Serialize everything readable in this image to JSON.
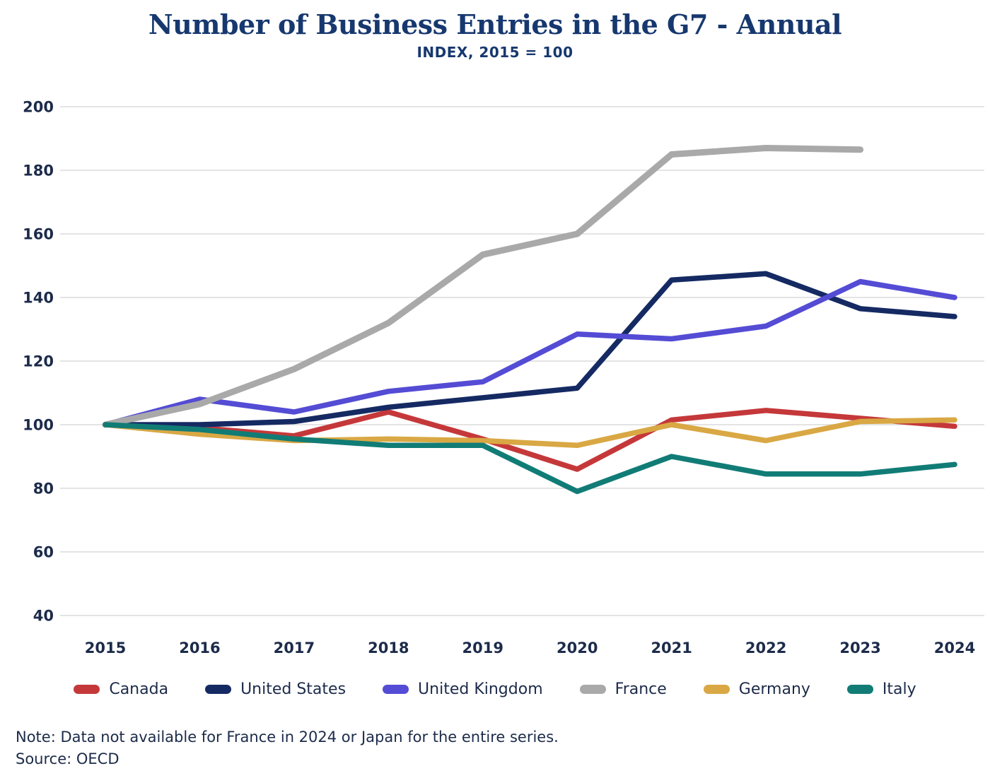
{
  "chart": {
    "title": "Number of Business Entries in the G7 - Annual",
    "subtitle": "INDEX, 2015 = 100"
  },
  "chart_data": {
    "type": "line",
    "x": [
      2015,
      2016,
      2017,
      2018,
      2019,
      2020,
      2021,
      2022,
      2023,
      2024
    ],
    "series": [
      {
        "name": "Canada",
        "color": "#C5383A",
        "values": [
          100,
          99,
          96.5,
          104,
          95.5,
          86,
          101.5,
          104.5,
          102,
          99.5
        ]
      },
      {
        "name": "United States",
        "color": "#152A63",
        "values": [
          100,
          100,
          101,
          105.5,
          108.5,
          111.5,
          145.5,
          147.5,
          136.5,
          134
        ]
      },
      {
        "name": "United Kingdom",
        "color": "#544CD4",
        "values": [
          100,
          108,
          104,
          110.5,
          113.5,
          128.5,
          127,
          131,
          145,
          140
        ]
      },
      {
        "name": "France",
        "color": "#A9A9A9",
        "values": [
          100,
          106.5,
          117.5,
          132,
          153.5,
          160,
          185,
          187,
          186.5,
          null
        ]
      },
      {
        "name": "Germany",
        "color": "#D9A844",
        "values": [
          100,
          97,
          95,
          95.5,
          95,
          93.5,
          100,
          95,
          101,
          101.5
        ]
      },
      {
        "name": "Italy",
        "color": "#117C76",
        "values": [
          100,
          98.5,
          95.5,
          93.5,
          93.5,
          79,
          90,
          84.5,
          84.5,
          87.5
        ]
      }
    ],
    "ylim": [
      40,
      200
    ],
    "yticks": [
      40,
      60,
      80,
      100,
      120,
      140,
      160,
      180,
      200
    ],
    "grid": true,
    "legend_position": "bottom"
  },
  "note": {
    "line1": "Note: Data not available for France in 2024 or Japan for the entire series.",
    "line2": "Source: OECD"
  },
  "colors": {
    "title": "#17386F",
    "axis_text": "#1C2B4A",
    "grid": "#DCDCDC",
    "background": "#FFFFFF"
  }
}
